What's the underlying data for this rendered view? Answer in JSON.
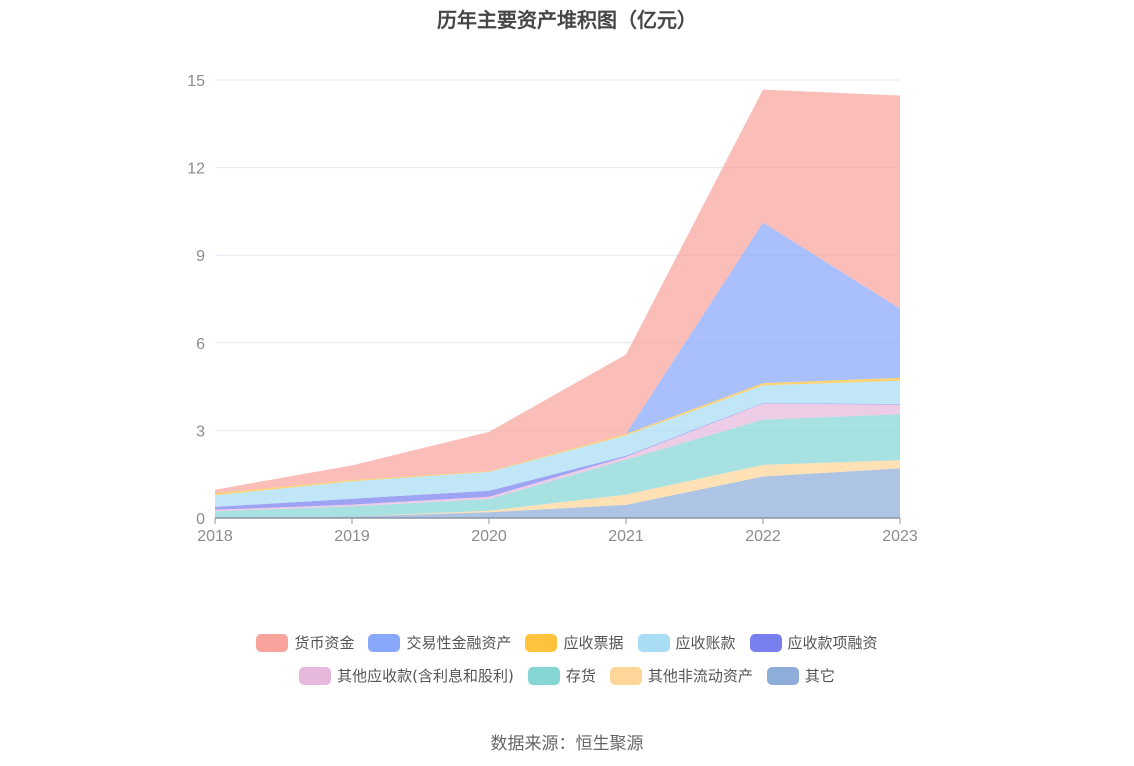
{
  "chart_data": {
    "type": "area",
    "title": "历年主要资产堆积图（亿元）",
    "x": [
      "2018",
      "2019",
      "2020",
      "2021",
      "2022",
      "2023"
    ],
    "ylim": [
      0,
      15
    ],
    "yticks": [
      0,
      3,
      6,
      9,
      12,
      15
    ],
    "stacked": true,
    "grid": true,
    "legend_position": "bottom",
    "series": [
      {
        "name": "其它",
        "color": "#8fadd9",
        "values": [
          0.03,
          0.05,
          0.2,
          0.45,
          1.42,
          1.7
        ]
      },
      {
        "name": "其他非流动资产",
        "color": "#ffd699",
        "values": [
          0.0,
          0.0,
          0.05,
          0.35,
          0.4,
          0.28
        ]
      },
      {
        "name": "存货",
        "color": "#86d6d6",
        "values": [
          0.2,
          0.35,
          0.4,
          1.2,
          1.55,
          1.57
        ]
      },
      {
        "name": "其他应收款(含利息和股利)",
        "color": "#e6b8dc",
        "values": [
          0.05,
          0.06,
          0.08,
          0.1,
          0.55,
          0.33
        ]
      },
      {
        "name": "应收款项融资",
        "color": "#7a7ff0",
        "values": [
          0.1,
          0.2,
          0.2,
          0.03,
          0.02,
          0.02
        ]
      },
      {
        "name": "应收账款",
        "color": "#a8ddf5",
        "values": [
          0.4,
          0.6,
          0.65,
          0.7,
          0.6,
          0.8
        ]
      },
      {
        "name": "应收票据",
        "color": "#ffc23d",
        "values": [
          0.07,
          0.04,
          0.02,
          0.05,
          0.08,
          0.1
        ]
      },
      {
        "name": "交易性金融资产",
        "color": "#88a8fc",
        "values": [
          0.0,
          0.0,
          0.0,
          0.0,
          5.5,
          2.37
        ]
      },
      {
        "name": "货币资金",
        "color": "#f8a39c",
        "values": [
          0.12,
          0.5,
          1.35,
          2.72,
          4.55,
          7.3
        ]
      }
    ]
  },
  "legend_order": [
    "货币资金",
    "交易性金融资产",
    "应收票据",
    "应收账款",
    "应收款项融资",
    "其他应收款(含利息和股利)",
    "存货",
    "其他非流动资产",
    "其它"
  ],
  "source": "数据来源：恒生聚源"
}
